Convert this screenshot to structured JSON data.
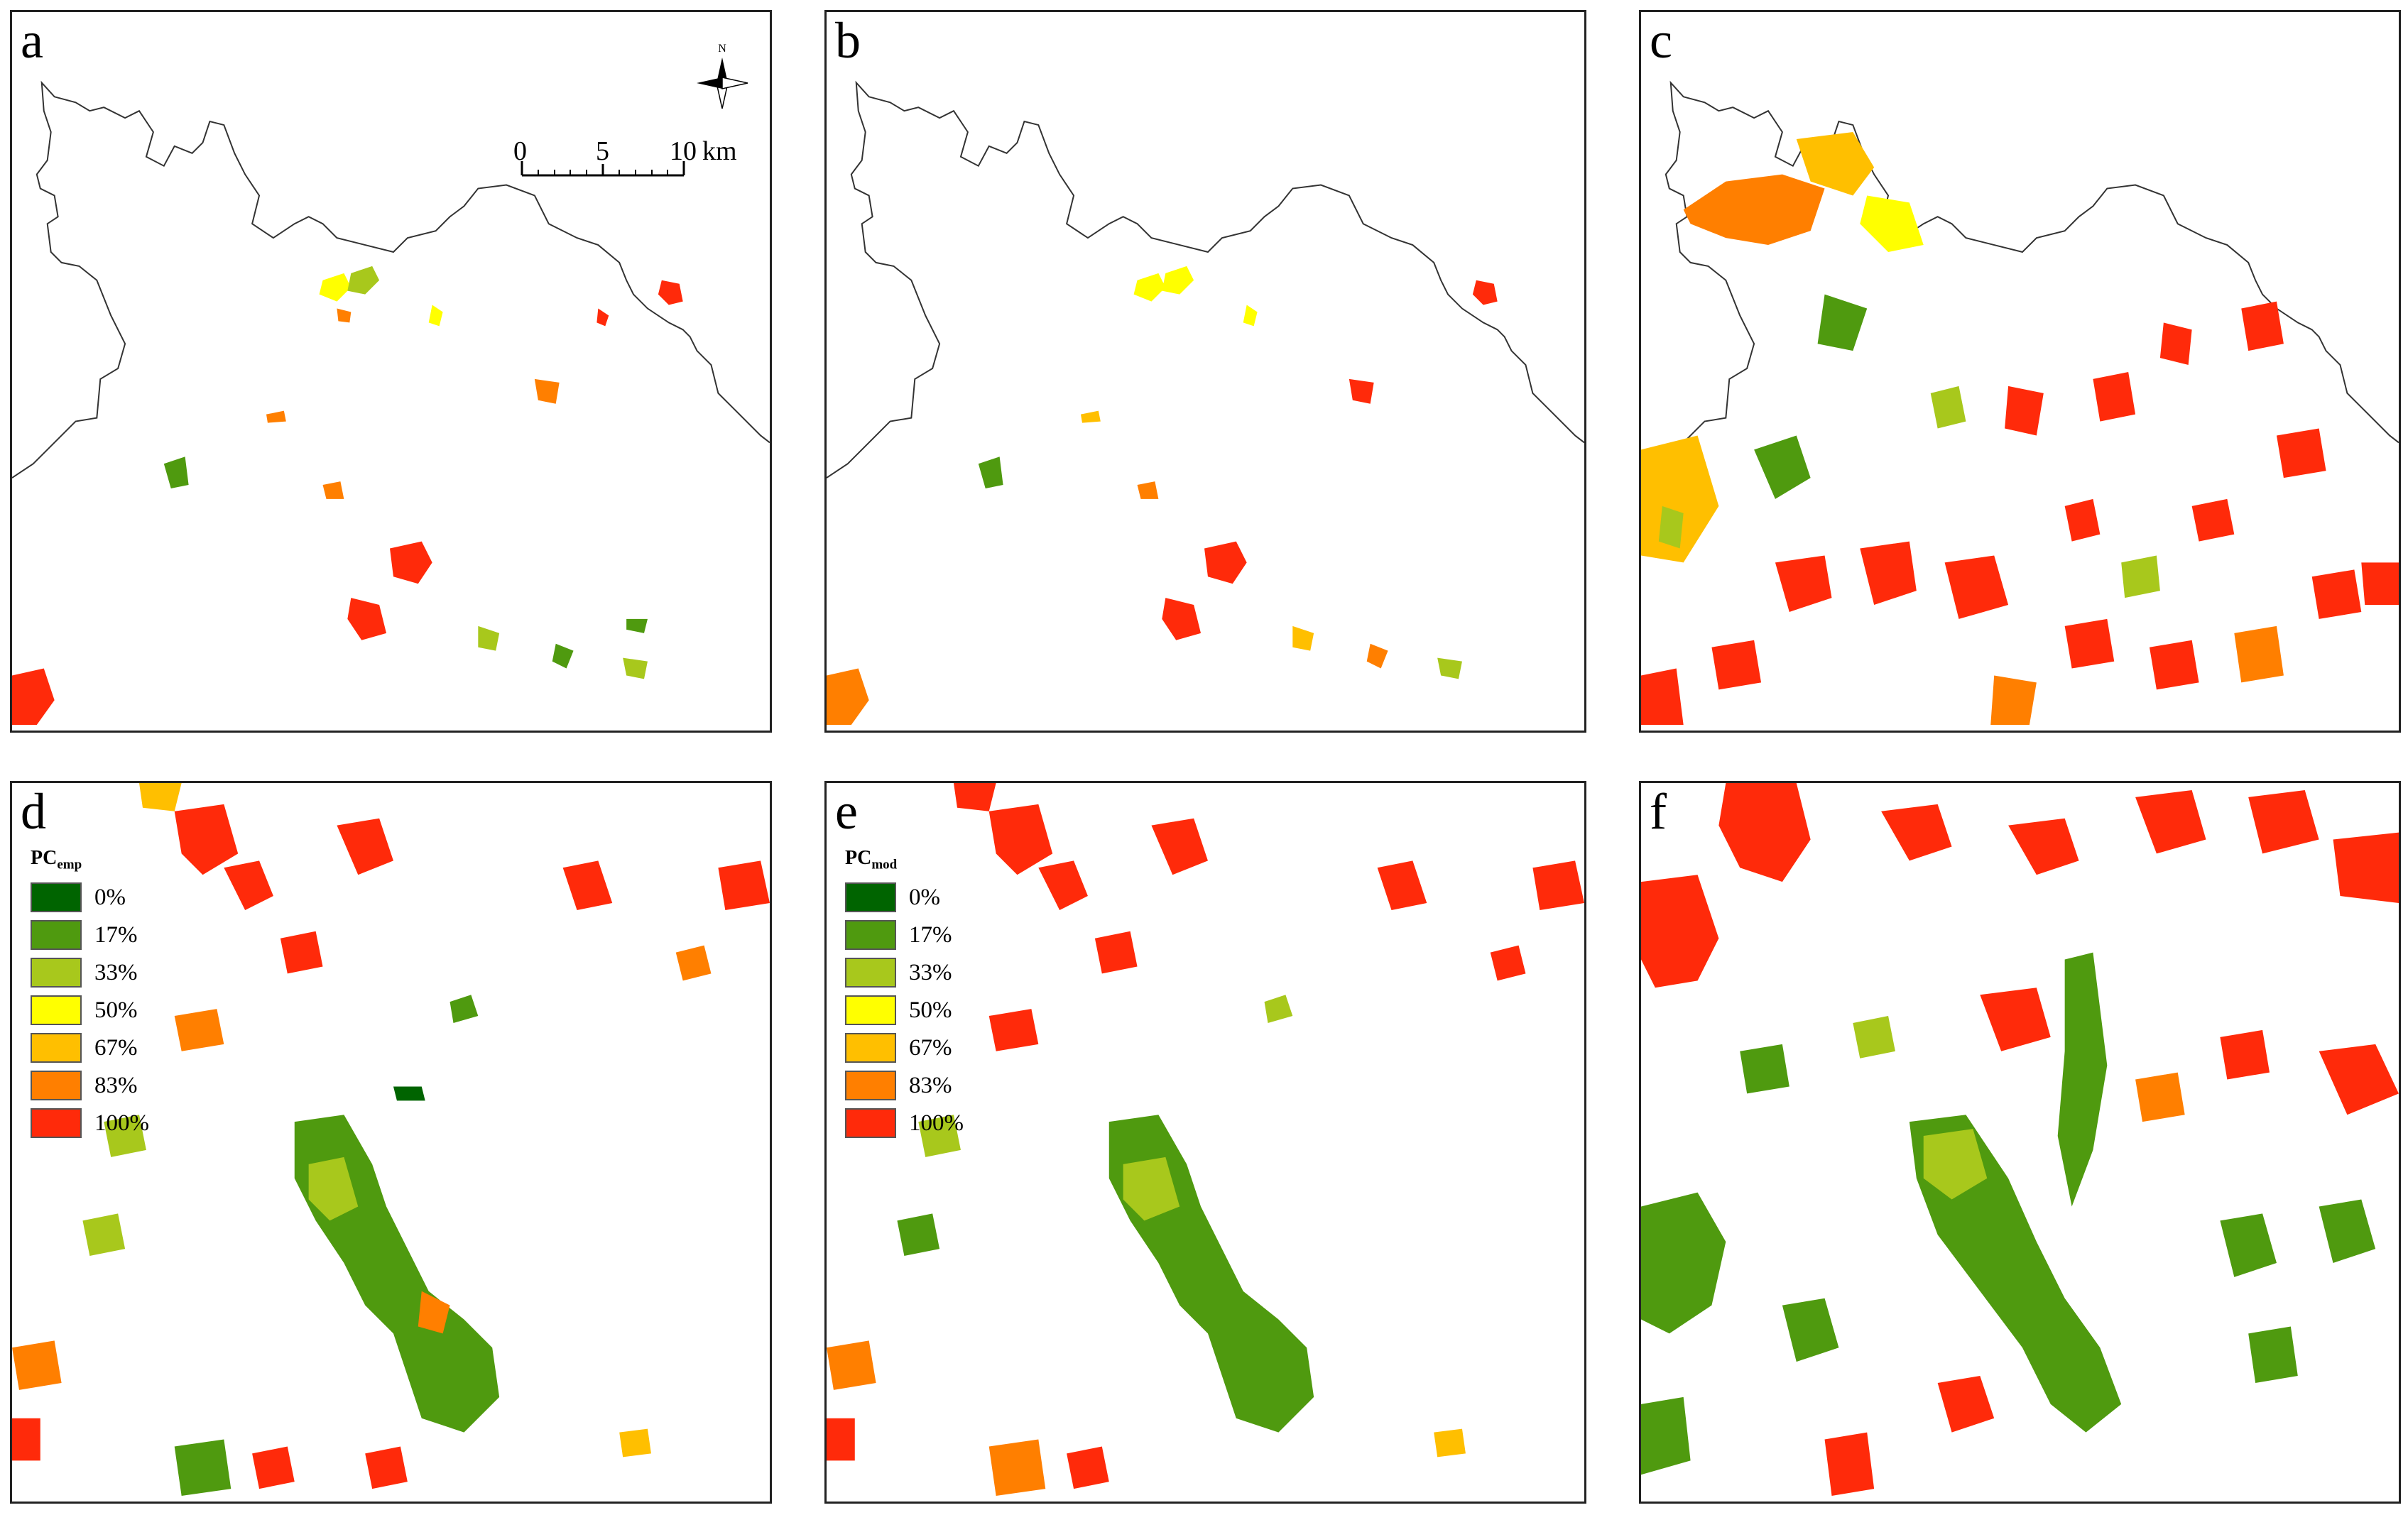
{
  "panels": [
    {
      "label": "a"
    },
    {
      "label": "b"
    },
    {
      "label": "c"
    },
    {
      "label": "d"
    },
    {
      "label": "e"
    },
    {
      "label": "f"
    }
  ],
  "scalebar": {
    "zero": "0",
    "mid": "5",
    "max": "10",
    "unit": "km"
  },
  "north_arrow": {
    "letter": "N"
  },
  "legend_d": {
    "title_main": "PC",
    "title_sub": "emp"
  },
  "legend_e": {
    "title_main": "PC",
    "title_sub": "mod"
  },
  "legend_classes": [
    {
      "label": "0%",
      "color": "#006400"
    },
    {
      "label": "17%",
      "color": "#4f9a0f"
    },
    {
      "label": "33%",
      "color": "#a8c81c"
    },
    {
      "label": "50%",
      "color": "#ffff00"
    },
    {
      "label": "67%",
      "color": "#ffbf00"
    },
    {
      "label": "83%",
      "color": "#ff7f00"
    },
    {
      "label": "100%",
      "color": "#ff2a0a"
    }
  ]
}
